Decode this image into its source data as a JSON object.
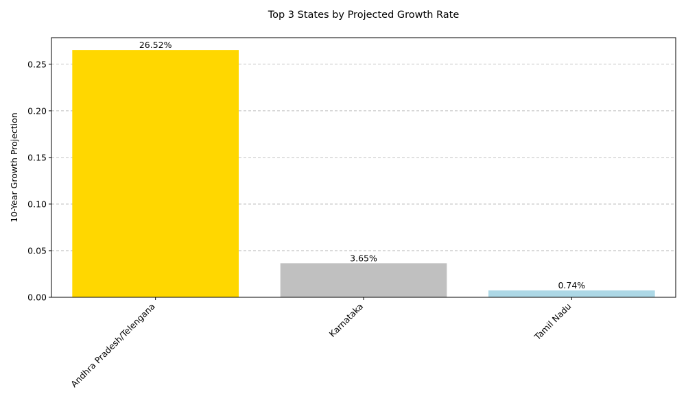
{
  "chart_data": {
    "type": "bar",
    "title": "Top 3 States by Projected Growth Rate",
    "xlabel": "",
    "ylabel": "10-Year Growth Projection",
    "categories": [
      "Andhra Pradesh/Telengana",
      "Karnataka",
      "Tamil Nadu"
    ],
    "values": [
      0.2652,
      0.0365,
      0.0074
    ],
    "data_labels": [
      "26.52%",
      "3.65%",
      "0.74%"
    ],
    "bar_colors": [
      "#FFD700",
      "#C0C0C0",
      "#ADD8E6"
    ],
    "ylim": [
      0,
      0.2785
    ],
    "yticks": [
      0.0,
      0.05,
      0.1,
      0.15,
      0.2,
      0.25
    ],
    "ytick_labels": [
      "0.00",
      "0.05",
      "0.10",
      "0.15",
      "0.20",
      "0.25"
    ],
    "grid": "y-dashed",
    "legend": "none",
    "x_tick_rotation": 45
  }
}
